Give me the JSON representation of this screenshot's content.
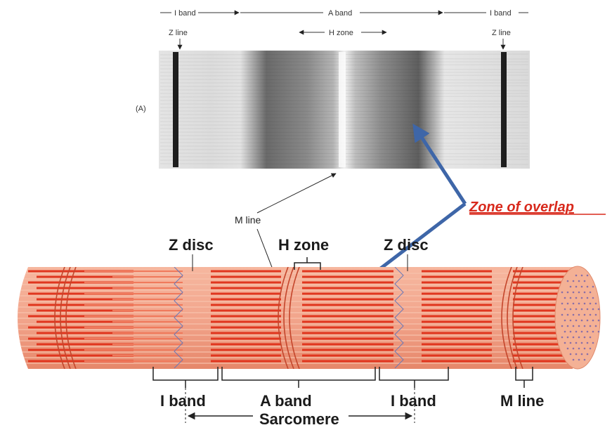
{
  "micrograph": {
    "panel_label": "(A)",
    "top_labels": {
      "i_band_left": "I band",
      "a_band": "A band",
      "i_band_right": "I band",
      "z_line_left": "Z line",
      "h_zone": "H zone",
      "z_line_right": "Z line"
    }
  },
  "callouts": {
    "zone_of_overlap": "Zone of overlap",
    "m_line": "M line"
  },
  "fiber_diagram": {
    "top_labels": {
      "z_disc_left": "Z disc",
      "h_zone": "H zone",
      "z_disc_right": "Z disc"
    },
    "bottom_labels": {
      "i_band_left": "I band",
      "a_band": "A  band",
      "i_band_right": "I band",
      "m_line": "M line",
      "sarcomere": "Sarcomere"
    }
  },
  "colors": {
    "fiber_base": "#f2a58c",
    "thick_filament": "#e0361f",
    "thin_filament": "#f7c3ad",
    "callout_arrow": "#3e66a8",
    "zone_text": "#d8291c"
  }
}
